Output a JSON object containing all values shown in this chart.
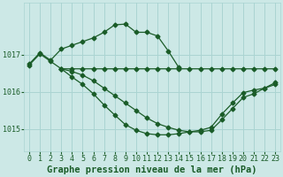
{
  "bg_color": "#cce8e6",
  "grid_color": "#aad4d2",
  "line_color": "#1a5c28",
  "xlabel": "Graphe pression niveau de la mer (hPa)",
  "xlabel_fontsize": 7.5,
  "tick_fontsize": 6,
  "ylim": [
    1014.4,
    1018.4
  ],
  "xlim": [
    -0.5,
    23.5
  ],
  "yticks": [
    1015,
    1016,
    1017
  ],
  "xticks": [
    0,
    1,
    2,
    3,
    4,
    5,
    6,
    7,
    8,
    9,
    10,
    11,
    12,
    13,
    14,
    15,
    16,
    17,
    18,
    19,
    20,
    21,
    22,
    23
  ],
  "series": [
    {
      "x": [
        0,
        1,
        2,
        3,
        4,
        5,
        6,
        7,
        8,
        9,
        10,
        11,
        12,
        13,
        14
      ],
      "y": [
        1016.75,
        1017.05,
        1016.85,
        1017.15,
        1017.25,
        1017.35,
        1017.45,
        1017.6,
        1017.8,
        1017.82,
        1017.6,
        1017.6,
        1017.5,
        1017.1,
        1016.65
      ]
    },
    {
      "x": [
        0,
        1,
        2,
        3,
        4,
        5,
        6,
        7,
        8,
        9,
        10,
        11,
        12,
        13,
        14,
        15,
        16,
        17,
        18,
        19,
        20,
        21,
        22,
        23
      ],
      "y": [
        1016.72,
        1017.02,
        1016.82,
        1016.62,
        1016.62,
        1016.62,
        1016.62,
        1016.62,
        1016.62,
        1016.62,
        1016.62,
        1016.62,
        1016.62,
        1016.62,
        1016.62,
        1016.62,
        1016.62,
        1016.62,
        1016.62,
        1016.62,
        1016.62,
        1016.62,
        1016.62,
        1016.62
      ]
    },
    {
      "x": [
        3,
        4,
        5,
        6,
        7,
        8,
        9,
        10,
        11,
        12,
        13,
        14,
        15,
        16,
        17,
        18,
        19,
        20,
        21,
        22,
        23
      ],
      "y": [
        1016.62,
        1016.55,
        1016.45,
        1016.3,
        1016.1,
        1015.9,
        1015.7,
        1015.5,
        1015.3,
        1015.15,
        1015.05,
        1014.97,
        1014.93,
        1014.93,
        1014.97,
        1015.25,
        1015.55,
        1015.85,
        1015.95,
        1016.1,
        1016.25
      ]
    },
    {
      "x": [
        3,
        4,
        5,
        6,
        7,
        8,
        9,
        10,
        11,
        12,
        13,
        14,
        15,
        16,
        17,
        18,
        19,
        20,
        21,
        22,
        23
      ],
      "y": [
        1016.62,
        1016.4,
        1016.2,
        1015.95,
        1015.65,
        1015.38,
        1015.12,
        1014.97,
        1014.88,
        1014.85,
        1014.85,
        1014.88,
        1014.93,
        1014.97,
        1015.05,
        1015.4,
        1015.7,
        1015.98,
        1016.05,
        1016.1,
        1016.2
      ]
    }
  ]
}
